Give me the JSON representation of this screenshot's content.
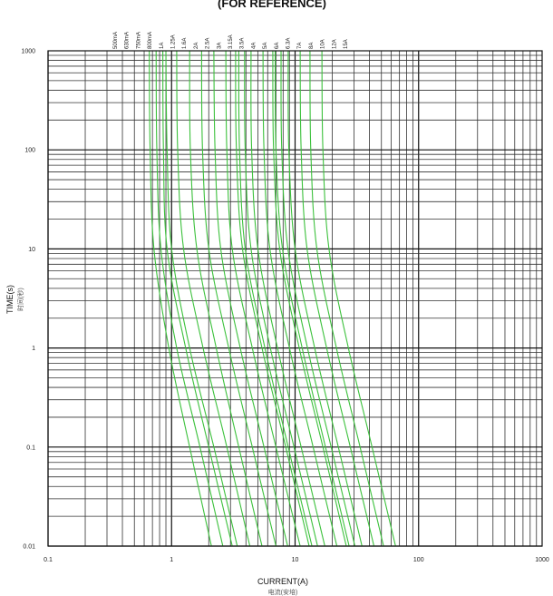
{
  "chart_data": {
    "type": "line",
    "title": "(FOR REFERENCE)",
    "xlabel": "CURRENT(A)",
    "xlabel_sub": "电流(安培)",
    "ylabel": "TIME(s)",
    "ylabel_sub": "时间(秒)",
    "x_scale": "log",
    "y_scale": "log",
    "xlim": [
      0.1,
      1000
    ],
    "ylim": [
      0.01,
      1000
    ],
    "x_ticks": [
      {
        "value": 0.1,
        "label": "0.1"
      },
      {
        "value": 1,
        "label": "1"
      },
      {
        "value": 10,
        "label": "10"
      },
      {
        "value": 100,
        "label": "100"
      },
      {
        "value": 1000,
        "label": "1000"
      }
    ],
    "y_ticks": [
      {
        "value": 1000,
        "label": "1000"
      },
      {
        "value": 100,
        "label": "100"
      },
      {
        "value": 10,
        "label": "10"
      },
      {
        "value": 1,
        "label": "1"
      },
      {
        "value": 0.1,
        "label": "0.1"
      },
      {
        "value": 0.01,
        "label": "0.01"
      }
    ],
    "grid": true,
    "line_color": "#3cc13c",
    "series": [
      {
        "name": "500mA",
        "points": [
          [
            0.66,
            1000
          ],
          [
            0.67,
            100
          ],
          [
            0.72,
            10
          ],
          [
            0.95,
            1
          ],
          [
            1.4,
            0.1
          ],
          [
            2.1,
            0.01
          ]
        ]
      },
      {
        "name": "630mA",
        "points": [
          [
            0.75,
            1000
          ],
          [
            0.76,
            100
          ],
          [
            0.82,
            10
          ],
          [
            1.1,
            1
          ],
          [
            1.7,
            0.1
          ],
          [
            2.6,
            0.01
          ]
        ]
      },
      {
        "name": "750mA",
        "points": [
          [
            0.85,
            1000
          ],
          [
            0.86,
            100
          ],
          [
            0.92,
            10
          ],
          [
            1.3,
            1
          ],
          [
            2.0,
            0.1
          ],
          [
            3.1,
            0.01
          ]
        ]
      },
      {
        "name": "800mA",
        "points": [
          [
            0.9,
            1000
          ],
          [
            0.92,
            100
          ],
          [
            1.0,
            10
          ],
          [
            1.4,
            1
          ],
          [
            2.2,
            0.1
          ],
          [
            3.4,
            0.01
          ]
        ]
      },
      {
        "name": "1A",
        "points": [
          [
            1.1,
            1000
          ],
          [
            1.12,
            100
          ],
          [
            1.25,
            10
          ],
          [
            1.8,
            1
          ],
          [
            2.8,
            0.1
          ],
          [
            4.3,
            0.01
          ]
        ]
      },
      {
        "name": "1.25A",
        "points": [
          [
            1.4,
            1000
          ],
          [
            1.42,
            100
          ],
          [
            1.6,
            10
          ],
          [
            2.3,
            1
          ],
          [
            3.5,
            0.1
          ],
          [
            5.4,
            0.01
          ]
        ]
      },
      {
        "name": "1.6A",
        "points": [
          [
            1.75,
            1000
          ],
          [
            1.78,
            100
          ],
          [
            2.0,
            10
          ],
          [
            2.9,
            1
          ],
          [
            4.5,
            0.1
          ],
          [
            7.0,
            0.01
          ]
        ]
      },
      {
        "name": "2A",
        "points": [
          [
            2.2,
            1000
          ],
          [
            2.25,
            100
          ],
          [
            2.5,
            10
          ],
          [
            3.6,
            1
          ],
          [
            5.6,
            0.1
          ],
          [
            8.7,
            0.01
          ]
        ]
      },
      {
        "name": "2.5A",
        "points": [
          [
            2.75,
            1000
          ],
          [
            2.8,
            100
          ],
          [
            3.1,
            10
          ],
          [
            4.5,
            1
          ],
          [
            7.0,
            0.1
          ],
          [
            11,
            0.01
          ]
        ]
      },
      {
        "name": "3A",
        "points": [
          [
            3.3,
            1000
          ],
          [
            3.35,
            100
          ],
          [
            3.75,
            10
          ],
          [
            5.4,
            1
          ],
          [
            8.4,
            0.1
          ],
          [
            13,
            0.01
          ]
        ]
      },
      {
        "name": "3.15A",
        "points": [
          [
            3.5,
            1000
          ],
          [
            3.55,
            100
          ],
          [
            3.95,
            10
          ],
          [
            5.7,
            1
          ],
          [
            8.8,
            0.1
          ],
          [
            13.7,
            0.01
          ]
        ]
      },
      {
        "name": "3.5A",
        "points": [
          [
            3.9,
            1000
          ],
          [
            3.95,
            100
          ],
          [
            4.4,
            10
          ],
          [
            6.3,
            1
          ],
          [
            9.8,
            0.1
          ],
          [
            15.2,
            0.01
          ]
        ]
      },
      {
        "name": "4A",
        "points": [
          [
            4.4,
            1000
          ],
          [
            4.45,
            100
          ],
          [
            5.0,
            10
          ],
          [
            7.2,
            1
          ],
          [
            11.2,
            0.1
          ],
          [
            17.4,
            0.01
          ]
        ]
      },
      {
        "name": "5A",
        "points": [
          [
            5.5,
            1000
          ],
          [
            5.6,
            100
          ],
          [
            6.25,
            10
          ],
          [
            9.0,
            1
          ],
          [
            14,
            0.1
          ],
          [
            21.8,
            0.01
          ]
        ]
      },
      {
        "name": "6A",
        "points": [
          [
            6.6,
            1000
          ],
          [
            6.7,
            100
          ],
          [
            7.5,
            10
          ],
          [
            10.8,
            1
          ],
          [
            16.8,
            0.1
          ],
          [
            26,
            0.01
          ]
        ]
      },
      {
        "name": "6.3A",
        "points": [
          [
            6.9,
            1000
          ],
          [
            7.0,
            100
          ],
          [
            7.9,
            10
          ],
          [
            11.4,
            1
          ],
          [
            17.6,
            0.1
          ],
          [
            27.4,
            0.01
          ]
        ]
      },
      {
        "name": "7A",
        "points": [
          [
            7.7,
            1000
          ],
          [
            7.8,
            100
          ],
          [
            8.75,
            10
          ],
          [
            12.6,
            1
          ],
          [
            19.6,
            0.1
          ],
          [
            30.5,
            0.01
          ]
        ]
      },
      {
        "name": "8A",
        "points": [
          [
            8.8,
            1000
          ],
          [
            8.9,
            100
          ],
          [
            10,
            10
          ],
          [
            14.4,
            1
          ],
          [
            22.4,
            0.1
          ],
          [
            34.8,
            0.01
          ]
        ]
      },
      {
        "name": "10A",
        "points": [
          [
            11,
            1000
          ],
          [
            11.2,
            100
          ],
          [
            12.5,
            10
          ],
          [
            18,
            1
          ],
          [
            28,
            0.1
          ],
          [
            43.5,
            0.01
          ]
        ]
      },
      {
        "name": "12A",
        "points": [
          [
            13.2,
            1000
          ],
          [
            13.4,
            100
          ],
          [
            15,
            10
          ],
          [
            21.6,
            1
          ],
          [
            33.6,
            0.1
          ],
          [
            52,
            0.01
          ]
        ]
      },
      {
        "name": "15A",
        "points": [
          [
            16.5,
            1000
          ],
          [
            16.8,
            100
          ],
          [
            18.8,
            10
          ],
          [
            27,
            1
          ],
          [
            42,
            0.1
          ],
          [
            65,
            0.01
          ]
        ]
      }
    ]
  }
}
